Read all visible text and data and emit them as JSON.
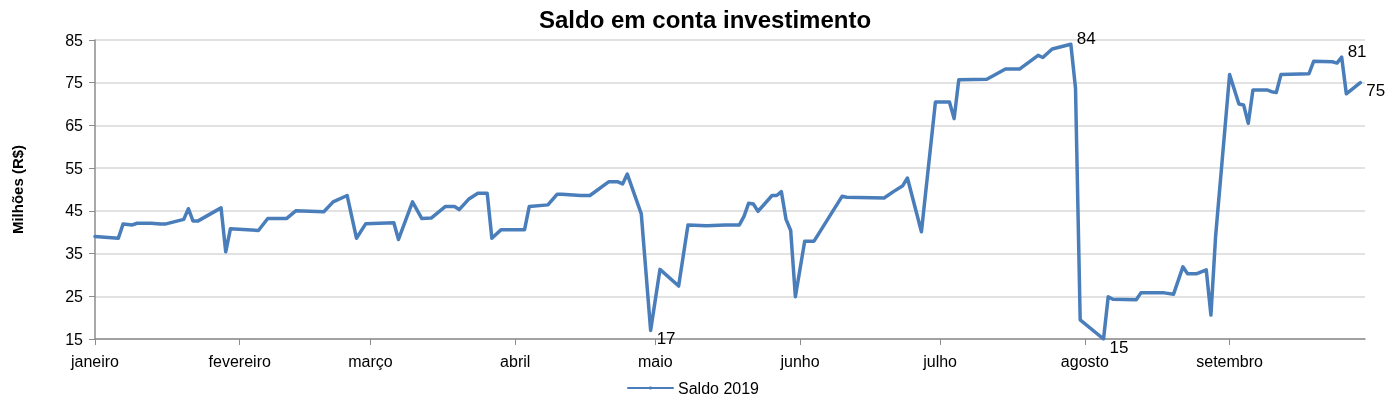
{
  "chart_data": {
    "type": "line",
    "title": "Saldo em conta investimento",
    "ylabel": "Milhões (R$)",
    "x": [
      "2019-01-01",
      "2019-01-06",
      "2019-01-07",
      "2019-01-09",
      "2019-01-10",
      "2019-01-13",
      "2019-01-15",
      "2019-01-16",
      "2019-01-20",
      "2019-01-21",
      "2019-01-22",
      "2019-01-23",
      "2019-01-28",
      "2019-01-29",
      "2019-01-30",
      "2019-02-05",
      "2019-02-07",
      "2019-02-11",
      "2019-02-13",
      "2019-02-19",
      "2019-02-21",
      "2019-02-24",
      "2019-02-26",
      "2019-02-28",
      "2019-03-06",
      "2019-03-07",
      "2019-03-10",
      "2019-03-12",
      "2019-03-14",
      "2019-03-17",
      "2019-03-19",
      "2019-03-20",
      "2019-03-22",
      "2019-03-24",
      "2019-03-26",
      "2019-03-27",
      "2019-03-29",
      "2019-04-03",
      "2019-04-04",
      "2019-04-08",
      "2019-04-10",
      "2019-04-11",
      "2019-04-15",
      "2019-04-17",
      "2019-04-21",
      "2019-04-23",
      "2019-04-24",
      "2019-04-25",
      "2019-04-28",
      "2019-04-30",
      "2019-05-02",
      "2019-05-06",
      "2019-05-08",
      "2019-05-12",
      "2019-05-16",
      "2019-05-19",
      "2019-05-20",
      "2019-05-21",
      "2019-05-22",
      "2019-05-23",
      "2019-05-26",
      "2019-05-27",
      "2019-05-28",
      "2019-05-29",
      "2019-05-30",
      "2019-05-31",
      "2019-06-02",
      "2019-06-04",
      "2019-06-10",
      "2019-06-11",
      "2019-06-19",
      "2019-06-21",
      "2019-06-23",
      "2019-06-24",
      "2019-06-27",
      "2019-06-30",
      "2019-07-03",
      "2019-07-04",
      "2019-07-05",
      "2019-07-11",
      "2019-07-15",
      "2019-07-18",
      "2019-07-22",
      "2019-07-23",
      "2019-07-25",
      "2019-07-29",
      "2019-07-30",
      "2019-07-31",
      "2019-08-05",
      "2019-08-06",
      "2019-08-07",
      "2019-08-12",
      "2019-08-13",
      "2019-08-18",
      "2019-08-20",
      "2019-08-22",
      "2019-08-23",
      "2019-08-25",
      "2019-08-27",
      "2019-08-28",
      "2019-08-29",
      "2019-09-01",
      "2019-09-03",
      "2019-09-04",
      "2019-09-05",
      "2019-09-06",
      "2019-09-09",
      "2019-09-10",
      "2019-09-11",
      "2019-09-12",
      "2019-09-18",
      "2019-09-19",
      "2019-09-23",
      "2019-09-24",
      "2019-09-25",
      "2019-09-26",
      "2019-09-29"
    ],
    "series": [
      {
        "name": "Saldo 2019",
        "color": "#4a7ebb",
        "values": [
          39.0,
          38.6,
          41.9,
          41.7,
          42.1,
          42.1,
          41.9,
          41.9,
          43.0,
          45.5,
          42.6,
          42.6,
          45.7,
          35.4,
          40.8,
          40.4,
          43.2,
          43.2,
          45.0,
          44.8,
          47.1,
          48.6,
          38.6,
          42.0,
          42.2,
          38.3,
          47.1,
          43.2,
          43.3,
          46.0,
          46.0,
          45.3,
          47.7,
          49.1,
          49.1,
          38.6,
          40.6,
          40.6,
          46.0,
          46.4,
          48.9,
          48.9,
          48.6,
          48.6,
          51.8,
          51.8,
          51.3,
          53.6,
          44.3,
          17,
          31.3,
          27.4,
          41.7,
          41.5,
          41.7,
          41.7,
          43.7,
          46.8,
          46.6,
          44.9,
          48.6,
          48.6,
          49.5,
          43.0,
          40.4,
          24.9,
          37.9,
          37.9,
          48.4,
          48.2,
          48.0,
          49.5,
          50.9,
          52.7,
          40.1,
          70.5,
          70.5,
          66.6,
          75.7,
          75.8,
          78.2,
          78.2,
          81.4,
          80.9,
          82.9,
          84,
          73.7,
          19.5,
          15,
          24.9,
          24.3,
          24.2,
          25.8,
          25.8,
          25.5,
          31.9,
          30.3,
          30.3,
          31.2,
          20.6,
          39,
          76.9,
          70.0,
          69.8,
          65.5,
          73.3,
          73.3,
          72.9,
          72.7,
          76.9,
          77.1,
          80.0,
          79.9,
          79.6,
          81,
          72.4,
          75
        ],
        "value_labels": [
          null,
          null,
          null,
          null,
          null,
          null,
          null,
          null,
          null,
          null,
          null,
          null,
          null,
          null,
          null,
          null,
          null,
          null,
          null,
          null,
          null,
          null,
          null,
          null,
          null,
          null,
          null,
          null,
          null,
          null,
          null,
          null,
          null,
          null,
          null,
          null,
          null,
          null,
          null,
          null,
          null,
          null,
          null,
          null,
          null,
          null,
          null,
          null,
          null,
          "17",
          null,
          null,
          null,
          null,
          null,
          null,
          null,
          null,
          null,
          null,
          null,
          null,
          null,
          null,
          null,
          null,
          null,
          null,
          null,
          null,
          null,
          null,
          null,
          null,
          null,
          null,
          null,
          null,
          null,
          null,
          null,
          null,
          null,
          null,
          null,
          "84",
          null,
          null,
          "15",
          null,
          null,
          null,
          null,
          null,
          null,
          null,
          null,
          null,
          null,
          null,
          null,
          null,
          null,
          null,
          null,
          null,
          null,
          null,
          null,
          null,
          null,
          null,
          null,
          null,
          "81",
          null,
          "75"
        ]
      }
    ],
    "xlim": [
      "2019-01-01",
      "2019-09-30"
    ],
    "xticks": [
      {
        "value": "2019-01-01",
        "label": "janeiro"
      },
      {
        "value": "2019-02-01",
        "label": "fevereiro"
      },
      {
        "value": "2019-03-01",
        "label": "março"
      },
      {
        "value": "2019-04-01",
        "label": "abril"
      },
      {
        "value": "2019-05-01",
        "label": "maio"
      },
      {
        "value": "2019-06-01",
        "label": "junho"
      },
      {
        "value": "2019-07-01",
        "label": "julho"
      },
      {
        "value": "2019-08-01",
        "label": "agosto"
      },
      {
        "value": "2019-09-01",
        "label": "setembro"
      }
    ],
    "ylim": [
      15,
      85
    ],
    "yticks": [
      15,
      25,
      35,
      45,
      55,
      65,
      75,
      85
    ],
    "grid": "y",
    "legend": "bottom",
    "marker": "none",
    "line_style": "solid"
  }
}
